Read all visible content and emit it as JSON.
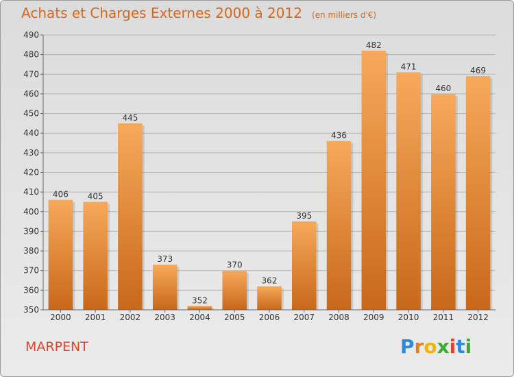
{
  "header": {
    "title": "Achats et Charges Externes 2000 à 2012",
    "unit": "(en milliers d'€)"
  },
  "footer": {
    "city": "MARPENT",
    "logo_letters": [
      {
        "ch": "P",
        "color": "#2e8bd8"
      },
      {
        "ch": "r",
        "color": "#e67e22"
      },
      {
        "ch": "o",
        "color": "#f4b400"
      },
      {
        "ch": "x",
        "color": "#3aaa35"
      },
      {
        "ch": "i",
        "color": "#e0422d"
      },
      {
        "ch": "t",
        "color": "#2e8bd8"
      },
      {
        "ch": "i",
        "color": "#3aaa35"
      }
    ]
  },
  "colors": {
    "title": "#d2691e",
    "bar_top": "#f7a95a",
    "bar_bottom": "#c8681a",
    "grid": "#b5b5b5",
    "text": "#333333"
  },
  "chart_data": {
    "type": "bar",
    "title": "Achats et Charges Externes 2000 à 2012",
    "subtitle": "(en milliers d'€)",
    "categories": [
      "2000",
      "2001",
      "2002",
      "2003",
      "2004",
      "2005",
      "2006",
      "2007",
      "2008",
      "2009",
      "2010",
      "2011",
      "2012"
    ],
    "values": [
      406,
      405,
      445,
      373,
      352,
      370,
      362,
      395,
      436,
      482,
      471,
      460,
      469
    ],
    "ylim": [
      350,
      490
    ],
    "yticks": [
      350,
      360,
      370,
      380,
      390,
      400,
      410,
      420,
      430,
      440,
      450,
      460,
      470,
      480,
      490
    ],
    "grid": true,
    "legend": "none"
  }
}
